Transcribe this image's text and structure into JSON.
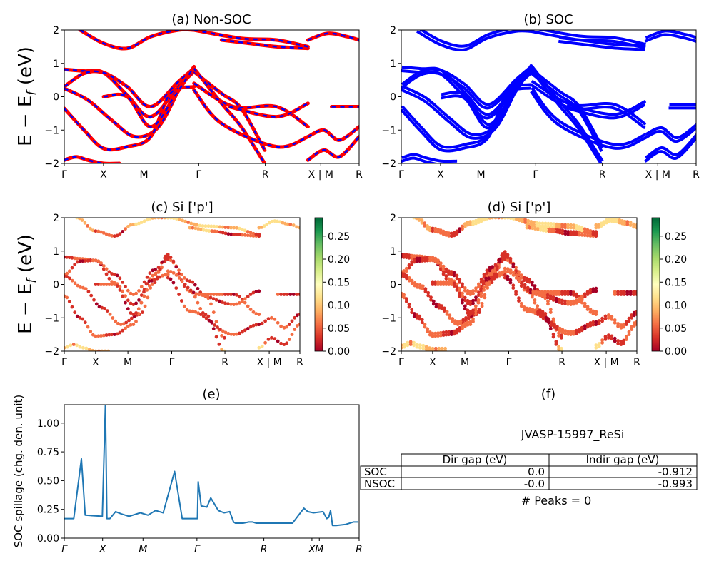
{
  "chart_data": [
    {
      "id": "a",
      "type": "line",
      "title": "(a) Non-SOC",
      "ylabel": "E - E_f (eV)",
      "ylim": [
        -2,
        2
      ],
      "yticks": [
        "2",
        "1",
        "0",
        "−1",
        "−2"
      ],
      "xticks": [
        "Γ",
        "X",
        "M",
        "Γ",
        "R",
        "X | M",
        "R"
      ],
      "series_colors": [
        "#ff0000",
        "#0000ff"
      ],
      "series_style": "red bands overlaid with blue dashes",
      "bands": [
        {
          "x": [
            0,
            0.5,
            1,
            1.6,
            2.2,
            2.9,
            3.3
          ],
          "y": [
            0.82,
            0.77,
            0.72,
            0.05,
            -0.6,
            0.3,
            0.75
          ]
        },
        {
          "x": [
            0,
            0.5,
            1,
            1.6,
            2.2,
            2.9,
            3.3
          ],
          "y": [
            0.3,
            0.7,
            0.72,
            0.3,
            -0.3,
            0.45,
            0.85
          ]
        },
        {
          "x": [
            0,
            0.6,
            1.2,
            1.8,
            2.4,
            3.0,
            3.3
          ],
          "y": [
            0.25,
            -0.1,
            -0.7,
            -1.2,
            -0.9,
            0.4,
            0.8
          ]
        },
        {
          "x": [
            0,
            0.5,
            1,
            1.6,
            2.2,
            2.7,
            3.3
          ],
          "y": [
            -0.35,
            -1.0,
            -1.55,
            -1.5,
            -1.2,
            0.1,
            0.3
          ]
        },
        {
          "x": [
            1.0,
            1.6,
            2.2,
            2.8,
            3.3
          ],
          "y": [
            0.0,
            0.0,
            -0.9,
            0.0,
            0.9
          ]
        },
        {
          "x": [
            0.4,
            1.0,
            1.6,
            2.2,
            2.9,
            3.3
          ],
          "y": [
            2.0,
            1.6,
            1.45,
            1.8,
            2.0,
            2.0
          ]
        },
        {
          "x": [
            3.3,
            4.0,
            4.5,
            5.1
          ],
          "y": [
            0.75,
            0.1,
            -0.35,
            -1.6
          ]
        },
        {
          "x": [
            3.3,
            4.0,
            4.5,
            5.1
          ],
          "y": [
            0.85,
            -0.2,
            -0.9,
            -2.0
          ]
        },
        {
          "x": [
            3.3,
            4.3,
            5.4,
            6.2
          ],
          "y": [
            0.4,
            -0.3,
            -0.3,
            -0.9
          ]
        },
        {
          "x": [
            3.3,
            4.0,
            5.4,
            6.2
          ],
          "y": [
            0.2,
            -0.8,
            -1.5,
            -1.2
          ]
        },
        {
          "x": [
            4.2,
            5.4,
            6.2
          ],
          "y": [
            -0.3,
            -0.6,
            -0.2
          ]
        },
        {
          "x": [
            4.0,
            4.7,
            5.4,
            6.2
          ],
          "y": [
            1.7,
            1.6,
            1.5,
            1.45
          ]
        },
        {
          "x": [
            3.3,
            4.5,
            5.4,
            6.2
          ],
          "y": [
            2.0,
            1.75,
            1.7,
            1.5
          ]
        },
        {
          "x": [
            6.2,
            6.6,
            7.0,
            7.5
          ],
          "y": [
            -1.2,
            -1.0,
            -1.3,
            -0.9
          ]
        },
        {
          "x": [
            6.2,
            6.6,
            7.0,
            7.5
          ],
          "y": [
            -1.9,
            -1.6,
            -1.8,
            -1.2
          ]
        },
        {
          "x": [
            6.2,
            6.7,
            7.2,
            7.5
          ],
          "y": [
            1.7,
            1.9,
            1.8,
            1.7
          ]
        },
        {
          "x": [
            6.8,
            7.2,
            7.5
          ],
          "y": [
            -0.3,
            -0.3,
            -0.3
          ]
        },
        {
          "x": [
            0,
            0.3,
            0.6,
            1.0,
            1.4
          ],
          "y": [
            -1.9,
            -1.8,
            -1.9,
            -2.0,
            -2.0
          ]
        }
      ]
    },
    {
      "id": "b",
      "type": "line",
      "title": "(b) SOC",
      "ylim": [
        -2,
        2
      ],
      "yticks": [
        "2",
        "1",
        "0",
        "−1",
        "−2"
      ],
      "xticks": [
        "Γ",
        "X",
        "M",
        "Γ",
        "R",
        "X | M",
        "R"
      ],
      "series_colors": [
        "#0000ff"
      ]
    },
    {
      "id": "c",
      "type": "scatter",
      "title": "(c)  Si ['p']",
      "ylabel": "E - E_f (eV)",
      "ylim": [
        -2,
        2
      ],
      "yticks": [
        "2",
        "1",
        "0",
        "−1",
        "−2"
      ],
      "xticks": [
        "Γ",
        "X",
        "M",
        "Γ",
        "R",
        "X | M",
        "R"
      ],
      "colorbar": {
        "min": 0.0,
        "max": 0.29,
        "ticks": [
          "0.00",
          "0.05",
          "0.10",
          "0.15",
          "0.20",
          "0.25"
        ],
        "colormap": "RdYlGn"
      }
    },
    {
      "id": "d",
      "type": "scatter",
      "title": "(d) Si ['p']",
      "ylim": [
        -2,
        2
      ],
      "yticks": [
        "2",
        "1",
        "0",
        "−1",
        "−2"
      ],
      "xticks": [
        "Γ",
        "X",
        "M",
        "Γ",
        "R",
        "X | M",
        "R"
      ],
      "colorbar": {
        "min": 0.0,
        "max": 0.29,
        "ticks": [
          "0.00",
          "0.05",
          "0.10",
          "0.15",
          "0.20",
          "0.25"
        ],
        "colormap": "RdYlGn"
      }
    },
    {
      "id": "e",
      "type": "line",
      "title": "(e)",
      "ylabel": "SOC spillage (chg. den. unit)",
      "ylim": [
        0,
        1.16
      ],
      "yticks": [
        "1.00",
        "0.75",
        "0.50",
        "0.25",
        "0.00"
      ],
      "xticks": [
        "Γ",
        "X",
        "M",
        "Γ",
        "R",
        "X",
        "M",
        "R"
      ],
      "color": "#1f77b4",
      "x": [
        0,
        0.25,
        0.45,
        0.55,
        1.0,
        1.08,
        1.12,
        1.2,
        1.35,
        1.5,
        1.7,
        2.0,
        2.2,
        2.4,
        2.6,
        2.9,
        3.1,
        3.35,
        3.5,
        3.52,
        3.6,
        3.75,
        3.85,
        4.05,
        4.2,
        4.35,
        4.45,
        4.5,
        4.6,
        4.7,
        4.85,
        4.95,
        5.05,
        5.15,
        5.2,
        5.6,
        6.0,
        6.3,
        6.4,
        6.55,
        6.8,
        6.9,
        6.95,
        7.0,
        7.05,
        7.15,
        7.4,
        7.6,
        7.73
      ],
      "y": [
        0.17,
        0.17,
        0.69,
        0.2,
        0.19,
        1.16,
        0.17,
        0.17,
        0.23,
        0.21,
        0.19,
        0.22,
        0.2,
        0.24,
        0.22,
        0.58,
        0.17,
        0.17,
        0.17,
        0.49,
        0.28,
        0.27,
        0.35,
        0.24,
        0.22,
        0.23,
        0.14,
        0.13,
        0.13,
        0.13,
        0.14,
        0.14,
        0.13,
        0.13,
        0.13,
        0.13,
        0.13,
        0.26,
        0.23,
        0.22,
        0.23,
        0.17,
        0.18,
        0.24,
        0.11,
        0.11,
        0.12,
        0.14,
        0.14
      ]
    }
  ],
  "table_panel": {
    "title": "(f)",
    "label": "JVASP-15997_ReSi",
    "headers": [
      "",
      "Dir gap (eV)",
      "Indir gap (eV)"
    ],
    "rows": [
      {
        "name": "SOC",
        "dir": "0.0",
        "indir": "-0.912"
      },
      {
        "name": "NSOC",
        "dir": "-0.0",
        "indir": "-0.993"
      }
    ],
    "footer": "# Peaks = 0"
  }
}
